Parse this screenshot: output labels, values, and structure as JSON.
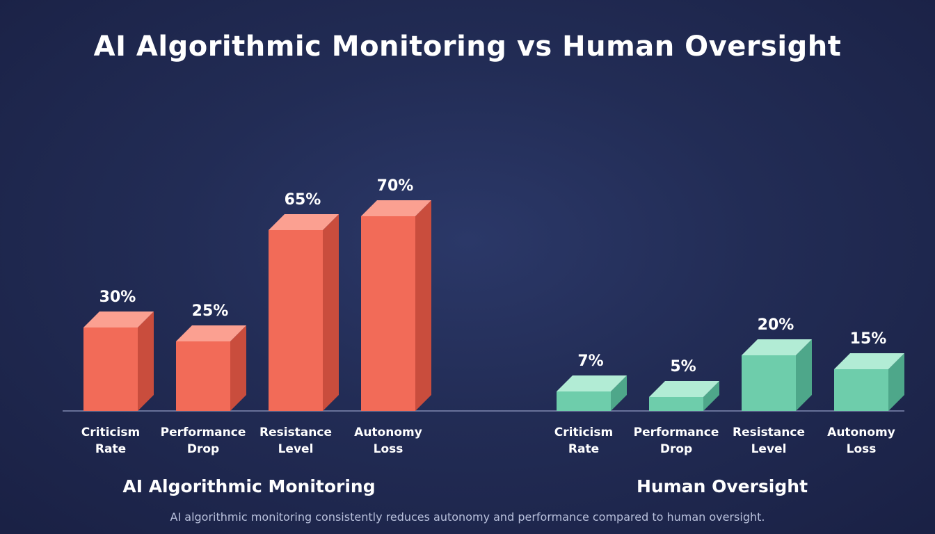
{
  "chart_data": {
    "type": "bar",
    "title": "AI Algorithmic Monitoring vs Human Oversight",
    "caption": "AI algorithmic monitoring consistently reduces autonomy and performance compared to human oversight.",
    "ylim": [
      0,
      80
    ],
    "unit": "%",
    "groups": [
      {
        "name": "AI Algorithmic Monitoring",
        "colors": {
          "front": "#f26b58",
          "top": "#fba091",
          "side": "#c94d3d"
        },
        "categories": [
          {
            "line1": "Criticism",
            "line2": "Rate"
          },
          {
            "line1": "Performance",
            "line2": "Drop"
          },
          {
            "line1": "Resistance",
            "line2": "Level"
          },
          {
            "line1": "Autonomy",
            "line2": "Loss"
          }
        ],
        "values": [
          30,
          25,
          65,
          70
        ],
        "value_labels": [
          "30%",
          "25%",
          "65%",
          "70%"
        ]
      },
      {
        "name": "Human Oversight",
        "colors": {
          "front": "#6ecdab",
          "top": "#b2ecd5",
          "side": "#4ea78a"
        },
        "categories": [
          {
            "line1": "Criticism",
            "line2": "Rate"
          },
          {
            "line1": "Performance",
            "line2": "Drop"
          },
          {
            "line1": "Resistance",
            "line2": "Level"
          },
          {
            "line1": "Autonomy",
            "line2": "Loss"
          }
        ],
        "values": [
          7,
          5,
          20,
          15
        ],
        "value_labels": [
          "7%",
          "5%",
          "20%",
          "15%"
        ]
      }
    ]
  }
}
